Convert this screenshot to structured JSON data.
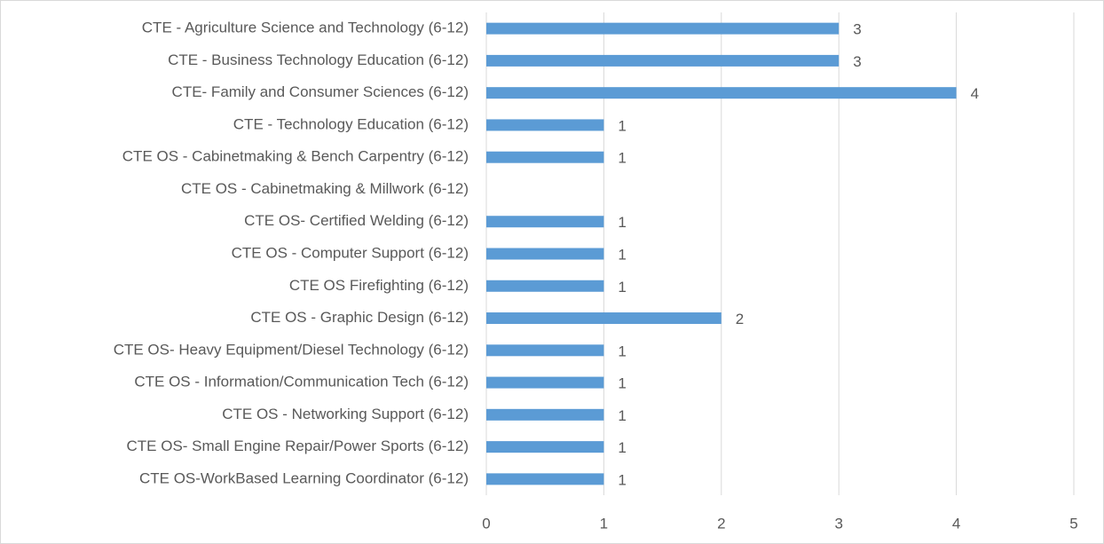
{
  "chart_data": {
    "type": "bar",
    "orientation": "horizontal",
    "categories": [
      "CTE - Agriculture Science and Technology (6-12)",
      "CTE - Business Technology Education (6-12)",
      "CTE- Family and Consumer Sciences (6-12)",
      "CTE - Technology Education (6-12)",
      "CTE OS - Cabinetmaking & Bench Carpentry (6-12)",
      "CTE OS - Cabinetmaking & Millwork (6-12)",
      "CTE OS- Certified Welding (6-12)",
      "CTE OS - Computer Support (6-12)",
      "CTE OS Firefighting (6-12)",
      "CTE OS - Graphic Design (6-12)",
      "CTE OS- Heavy Equipment/Diesel Technology (6-12)",
      "CTE OS - Information/Communication Tech (6-12)",
      "CTE OS - Networking Support (6-12)",
      "CTE OS- Small Engine Repair/Power Sports (6-12)",
      "CTE OS-WorkBased Learning Coordinator (6-12)"
    ],
    "values": [
      3,
      3,
      4,
      1,
      1,
      null,
      1,
      1,
      1,
      2,
      1,
      1,
      1,
      1,
      1
    ],
    "color": "#5b9bd5",
    "xlim": [
      0,
      5
    ],
    "xticks": [
      0,
      1,
      2,
      3,
      4,
      5
    ],
    "grid": true
  }
}
